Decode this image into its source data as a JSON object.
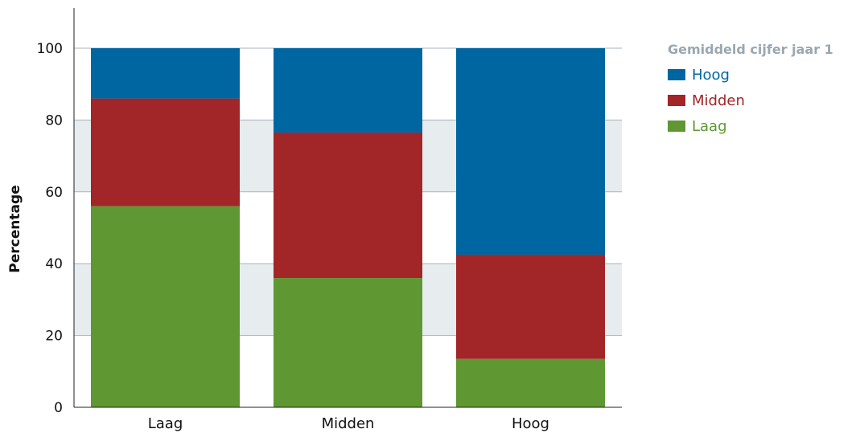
{
  "chart_data": {
    "type": "bar",
    "stacked": true,
    "categories": [
      "Laag",
      "Midden",
      "Hoog"
    ],
    "series": [
      {
        "name": "Laag",
        "color": "#5f9732",
        "values": [
          56,
          36,
          13.5
        ]
      },
      {
        "name": "Midden",
        "color": "#a22527",
        "values": [
          30,
          40.5,
          29
        ]
      },
      {
        "name": "Hoog",
        "color": "#0066a2",
        "values": [
          14,
          23.5,
          57.5
        ]
      }
    ],
    "title": "",
    "xlabel": "",
    "ylabel": "Percentage",
    "ylim": [
      0,
      100
    ],
    "yticks": [
      "0",
      "20",
      "40",
      "60",
      "80",
      "100"
    ],
    "legend_title": "Gemiddeld cijfer jaar 1",
    "legend_order": [
      "Hoog",
      "Midden",
      "Laag"
    ],
    "legend_position": "top-right",
    "grid": true,
    "band_color": "#e7ecef"
  }
}
